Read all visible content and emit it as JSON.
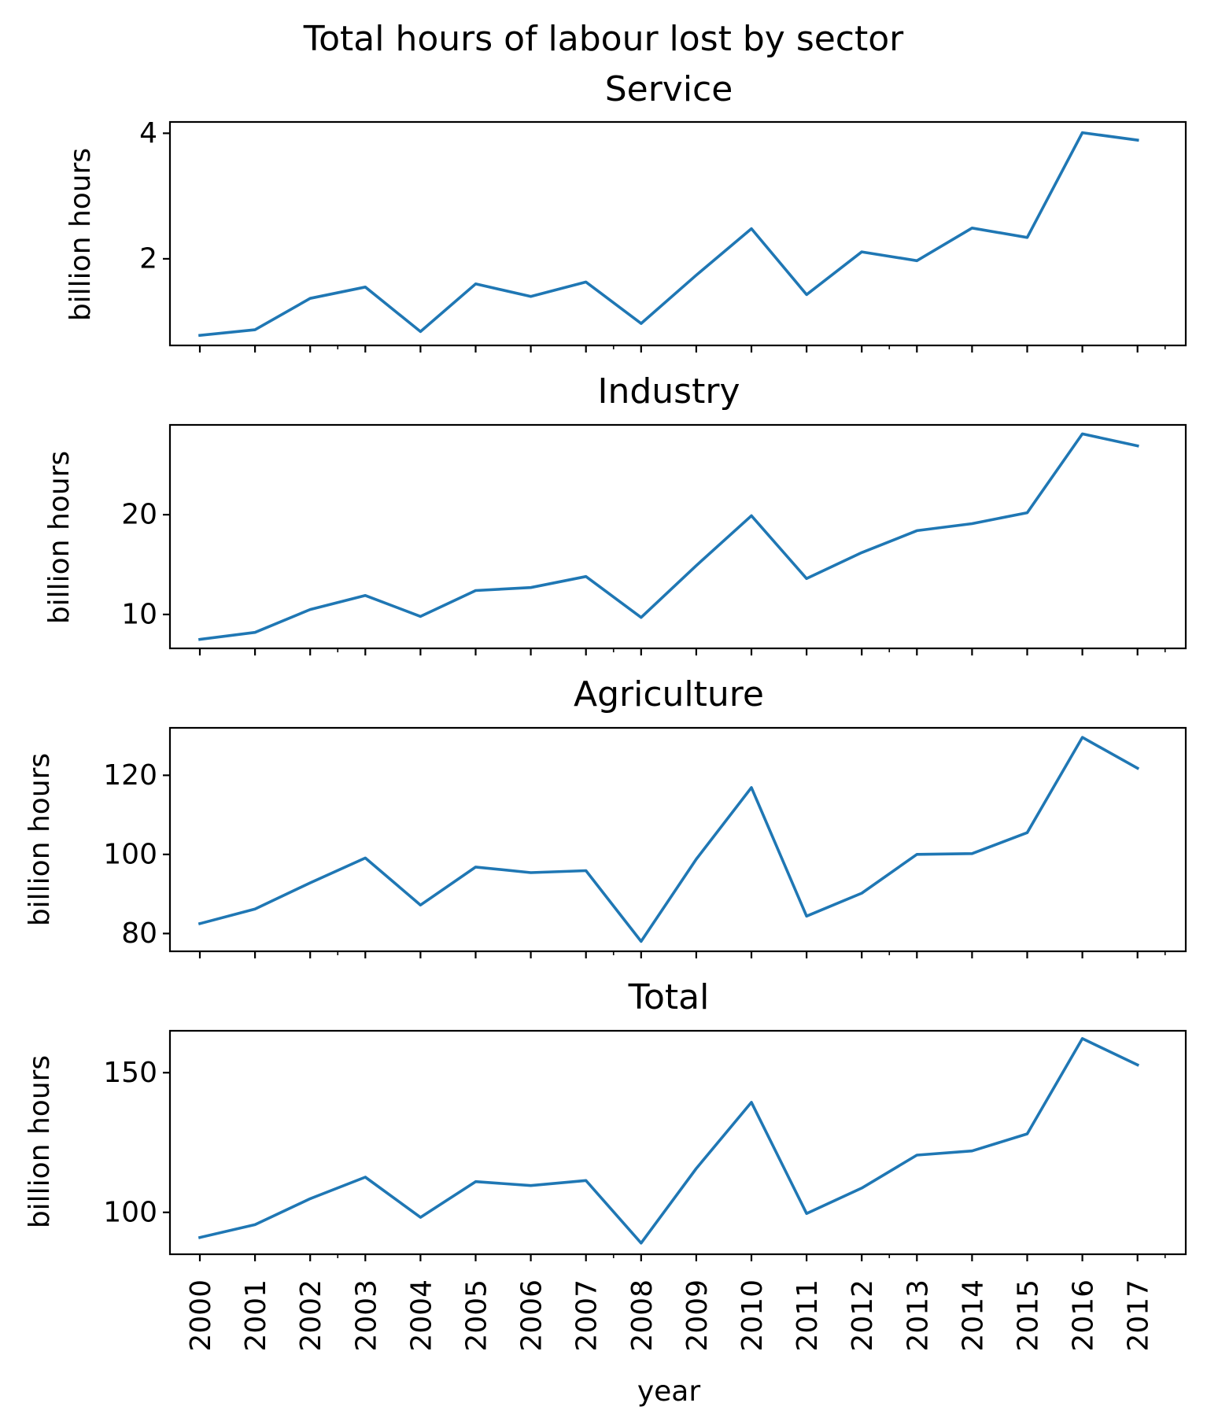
{
  "chart_data": {
    "type": "line",
    "title": "Total hours of labour lost by sector",
    "xlabel": "year",
    "line_color": "#1f77b4",
    "x": [
      "2000",
      "2001",
      "2002",
      "2003",
      "2004",
      "2005",
      "2006",
      "2007",
      "2008",
      "2009",
      "2010",
      "2011",
      "2012",
      "2013",
      "2014",
      "2015",
      "2016",
      "2017"
    ],
    "panels": [
      {
        "title": "Service",
        "ylabel": "billion hours",
        "yticks": [
          "2",
          "4"
        ],
        "ylim": [
          0.62,
          4.18
        ],
        "values": [
          0.78,
          0.87,
          1.37,
          1.55,
          0.84,
          1.6,
          1.4,
          1.63,
          0.97,
          1.74,
          2.48,
          1.43,
          2.11,
          1.97,
          2.49,
          2.34,
          4.01,
          3.89
        ]
      },
      {
        "title": "Industry",
        "ylabel": "billion hours",
        "yticks": [
          "10",
          "20"
        ],
        "ylim": [
          6.6,
          29.0
        ],
        "values": [
          7.5,
          8.2,
          10.5,
          11.9,
          9.8,
          12.4,
          12.7,
          13.8,
          9.7,
          14.9,
          19.9,
          13.6,
          16.2,
          18.4,
          19.1,
          20.2,
          28.1,
          26.9
        ]
      },
      {
        "title": "Agriculture",
        "ylabel": "billion hours",
        "yticks": [
          "80",
          "100",
          "120"
        ],
        "ylim": [
          75.5,
          132.0
        ],
        "values": [
          82.5,
          86.2,
          92.8,
          99.1,
          87.2,
          96.8,
          95.4,
          95.9,
          78.0,
          98.8,
          116.9,
          84.4,
          90.2,
          100.0,
          100.2,
          105.5,
          129.6,
          121.8
        ]
      },
      {
        "title": "Total",
        "ylabel": "billion hours",
        "yticks": [
          "100",
          "150"
        ],
        "ylim": [
          85.0,
          165.0
        ],
        "values": [
          91.0,
          95.6,
          104.9,
          112.6,
          98.2,
          111.0,
          109.6,
          111.4,
          89.0,
          115.7,
          139.4,
          99.6,
          108.7,
          120.5,
          122.0,
          128.1,
          162.2,
          152.8
        ]
      }
    ]
  }
}
